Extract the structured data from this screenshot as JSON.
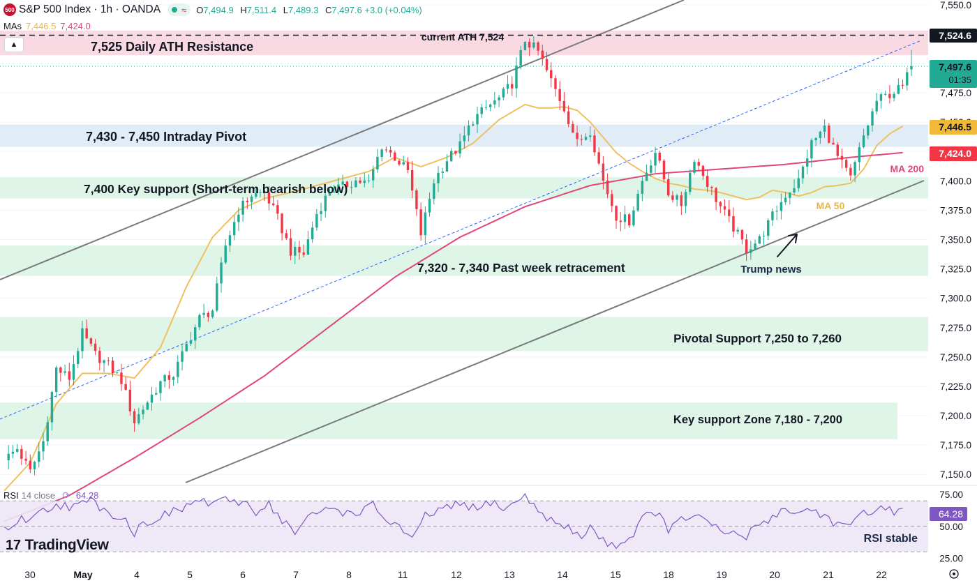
{
  "header": {
    "logo_text": "500",
    "title": "S&P 500 Index · 1h · OANDA",
    "wave_symbol": "≈",
    "ohlc": [
      {
        "k": "O",
        "v": "7,494.9"
      },
      {
        "k": "H",
        "v": "7,511.4"
      },
      {
        "k": "L",
        "v": "7,489.3"
      },
      {
        "k": "C",
        "v": "7,497.6 +3.0 (+0.04%)"
      }
    ],
    "collapse_icon": "▲"
  },
  "mas_legend": {
    "label": "MAs",
    "ma50": "7,446.5",
    "ma200": "7,424.0"
  },
  "rsi_legend": {
    "label": "RSI",
    "params": "14 close",
    "icon": "⟳",
    "value": "64.28"
  },
  "watermark": {
    "mark": "17",
    "text": "TradingView"
  },
  "colors": {
    "up": "#22ab94",
    "down": "#f23645",
    "ma50": "#f0c060",
    "ma200": "#e0457b",
    "rsi": "#7e57c2",
    "channel": "#7a7a7a",
    "midline": "#2962ff",
    "zone_red": "#f8d3de",
    "zone_blue": "#dbeaf6",
    "zone_green": "#d8f3e4",
    "price_tag": "#22ab94"
  },
  "chart_data": [
    {
      "type": "candlestick",
      "title": "S&P 500 Index · 1h · OANDA",
      "x_ticks": [
        "30",
        "May",
        "4",
        "5",
        "6",
        "7",
        "8",
        "11",
        "12",
        "13",
        "14",
        "15",
        "18",
        "19",
        "20",
        "21",
        "22"
      ],
      "y_ticks": [
        "7,550.0",
        "7,525.0",
        "7,500.0",
        "7,475.0",
        "7,450.0",
        "7,425.0",
        "7,400.0",
        "7,375.0",
        "7,350.0",
        "7,325.0",
        "7,300.0",
        "7,275.0",
        "7,250.0",
        "7,225.0",
        "7,200.0",
        "7,175.0",
        "7,150.0"
      ],
      "ylim": [
        7143,
        7554
      ],
      "grid": true,
      "anchors": [
        [
          0,
          7162
        ],
        [
          3,
          7172
        ],
        [
          6,
          7152
        ],
        [
          9,
          7178
        ],
        [
          12,
          7240
        ],
        [
          15,
          7232
        ],
        [
          18,
          7270
        ],
        [
          21,
          7252
        ],
        [
          24,
          7243
        ],
        [
          27,
          7230
        ],
        [
          30,
          7195
        ],
        [
          33,
          7212
        ],
        [
          36,
          7228
        ],
        [
          39,
          7235
        ],
        [
          42,
          7260
        ],
        [
          45,
          7283
        ],
        [
          48,
          7290
        ],
        [
          51,
          7345
        ],
        [
          54,
          7375
        ],
        [
          57,
          7388
        ],
        [
          60,
          7390
        ],
        [
          63,
          7368
        ],
        [
          66,
          7340
        ],
        [
          69,
          7338
        ],
        [
          72,
          7372
        ],
        [
          75,
          7392
        ],
        [
          78,
          7395
        ],
        [
          81,
          7400
        ],
        [
          84,
          7398
        ],
        [
          87,
          7430
        ],
        [
          90,
          7420
        ],
        [
          93,
          7408
        ],
        [
          96,
          7355
        ],
        [
          99,
          7400
        ],
        [
          102,
          7418
        ],
        [
          105,
          7430
        ],
        [
          108,
          7452
        ],
        [
          111,
          7462
        ],
        [
          114,
          7470
        ],
        [
          117,
          7483
        ],
        [
          120,
          7520
        ],
        [
          123,
          7510
        ],
        [
          126,
          7485
        ],
        [
          129,
          7462
        ],
        [
          132,
          7432
        ],
        [
          135,
          7443
        ],
        [
          138,
          7400
        ],
        [
          141,
          7370
        ],
        [
          144,
          7366
        ],
        [
          147,
          7400
        ],
        [
          150,
          7425
        ],
        [
          153,
          7390
        ],
        [
          156,
          7380
        ],
        [
          159,
          7420
        ],
        [
          162,
          7398
        ],
        [
          165,
          7378
        ],
        [
          168,
          7360
        ],
        [
          171,
          7342
        ],
        [
          174,
          7350
        ],
        [
          177,
          7370
        ],
        [
          180,
          7388
        ],
        [
          183,
          7400
        ],
        [
          186,
          7432
        ],
        [
          189,
          7445
        ],
        [
          192,
          7420
        ],
        [
          195,
          7402
        ],
        [
          198,
          7438
        ],
        [
          201,
          7468
        ],
        [
          204,
          7474
        ],
        [
          207,
          7480
        ],
        [
          209,
          7497.6
        ]
      ],
      "ohlc_last": {
        "open": 7494.9,
        "high": 7511.4,
        "low": 7489.3,
        "close": 7497.6,
        "change": 3.0,
        "change_pct": 0.04
      },
      "series": [
        {
          "name": "MA 50",
          "anchors": [
            [
              0,
              7136
            ],
            [
              6,
              7160
            ],
            [
              12,
              7210
            ],
            [
              18,
              7236
            ],
            [
              24,
              7236
            ],
            [
              30,
              7232
            ],
            [
              36,
              7258
            ],
            [
              42,
              7310
            ],
            [
              48,
              7352
            ],
            [
              54,
              7375
            ],
            [
              60,
              7385
            ],
            [
              66,
              7390
            ],
            [
              72,
              7396
            ],
            [
              78,
              7402
            ],
            [
              84,
              7408
            ],
            [
              90,
              7420
            ],
            [
              96,
              7412
            ],
            [
              102,
              7420
            ],
            [
              108,
              7432
            ],
            [
              114,
              7452
            ],
            [
              120,
              7465
            ],
            [
              123,
              7462
            ],
            [
              126,
              7462
            ],
            [
              129,
              7463
            ],
            [
              132,
              7460
            ],
            [
              135,
              7450
            ],
            [
              138,
              7437
            ],
            [
              141,
              7424
            ],
            [
              144,
              7415
            ],
            [
              147,
              7408
            ],
            [
              150,
              7402
            ],
            [
              153,
              7398
            ],
            [
              156,
              7396
            ],
            [
              159,
              7393
            ],
            [
              162,
              7392
            ],
            [
              165,
              7390
            ],
            [
              168,
              7387
            ],
            [
              171,
              7384
            ],
            [
              174,
              7386
            ],
            [
              177,
              7392
            ],
            [
              180,
              7390
            ],
            [
              183,
              7387
            ],
            [
              186,
              7390
            ],
            [
              189,
              7395
            ],
            [
              192,
              7396
            ],
            [
              195,
              7398
            ],
            [
              198,
              7410
            ],
            [
              201,
              7430
            ],
            [
              204,
              7440
            ],
            [
              207,
              7446.5
            ]
          ]
        },
        {
          "name": "MA 200",
          "anchors": [
            [
              0,
              7110
            ],
            [
              15,
              7132
            ],
            [
              30,
              7164
            ],
            [
              45,
              7198
            ],
            [
              60,
              7234
            ],
            [
              75,
              7276
            ],
            [
              90,
              7318
            ],
            [
              105,
              7352
            ],
            [
              120,
              7378
            ],
            [
              135,
              7396
            ],
            [
              150,
              7406
            ],
            [
              165,
              7410
            ],
            [
              180,
              7414
            ],
            [
              195,
              7420
            ],
            [
              207,
              7424
            ]
          ]
        }
      ],
      "zones": [
        {
          "label": "7,525 Daily ATH Resistance",
          "from": 7507,
          "to": 7528
        },
        {
          "label": "7,430 - 7,450 Intraday Pivot",
          "from": 7429,
          "to": 7448
        },
        {
          "label": "7,400 Key support (Short-term bearish below)",
          "from": 7385,
          "to": 7403
        },
        {
          "label": "7,320 - 7,340 Past week retracement",
          "from": 7319,
          "to": 7345
        },
        {
          "label": "Pivotal Support 7,250 to 7,260",
          "from": 7255,
          "to": 7284
        },
        {
          "label": "Key support Zone 7,180 - 7,200",
          "from": 7180,
          "to": 7211
        }
      ],
      "annotations": [
        {
          "text": "current ATH 7,524",
          "value": 7524
        },
        {
          "text": "MA 200"
        },
        {
          "text": "MA 50"
        },
        {
          "text": "Trump news"
        }
      ],
      "price_tags": [
        {
          "value": "7,524.6",
          "kind": "ath"
        },
        {
          "value": "7,497.6",
          "sub": "01:35",
          "kind": "last"
        },
        {
          "value": "7,446.5",
          "kind": "ma50"
        },
        {
          "value": "7,424.0",
          "kind": "ma200"
        }
      ]
    },
    {
      "type": "line",
      "title": "RSI 14 close",
      "y_ticks": [
        "75.00",
        "50.00",
        "25.00"
      ],
      "ylim": [
        22,
        80
      ],
      "bands": [
        70,
        50,
        30
      ],
      "last_value": "64.28",
      "annotation": "RSI stable",
      "series": [
        {
          "name": "RSI",
          "anchors": [
            [
              0,
              48
            ],
            [
              4,
              55
            ],
            [
              8,
              60
            ],
            [
              12,
              68
            ],
            [
              16,
              65
            ],
            [
              20,
              70
            ],
            [
              24,
              62
            ],
            [
              28,
              55
            ],
            [
              30,
              45
            ],
            [
              32,
              52
            ],
            [
              36,
              58
            ],
            [
              40,
              62
            ],
            [
              44,
              70
            ],
            [
              48,
              68
            ],
            [
              50,
              73
            ],
            [
              52,
              66
            ],
            [
              55,
              70
            ],
            [
              58,
              62
            ],
            [
              61,
              68
            ],
            [
              64,
              55
            ],
            [
              67,
              45
            ],
            [
              70,
              56
            ],
            [
              73,
              62
            ],
            [
              76,
              65
            ],
            [
              79,
              60
            ],
            [
              82,
              62
            ],
            [
              85,
              66
            ],
            [
              88,
              55
            ],
            [
              91,
              50
            ],
            [
              94,
              38
            ],
            [
              97,
              58
            ],
            [
              100,
              62
            ],
            [
              103,
              65
            ],
            [
              106,
              68
            ],
            [
              109,
              62
            ],
            [
              112,
              70
            ],
            [
              115,
              64
            ],
            [
              118,
              68
            ],
            [
              120,
              76
            ],
            [
              122,
              65
            ],
            [
              125,
              58
            ],
            [
              127,
              52
            ],
            [
              130,
              48
            ],
            [
              133,
              42
            ],
            [
              135,
              50
            ],
            [
              138,
              38
            ],
            [
              141,
              36
            ],
            [
              144,
              40
            ],
            [
              147,
              56
            ],
            [
              150,
              62
            ],
            [
              153,
              48
            ],
            [
              156,
              54
            ],
            [
              159,
              60
            ],
            [
              162,
              52
            ],
            [
              165,
              46
            ],
            [
              168,
              44
            ],
            [
              171,
              42
            ],
            [
              174,
              52
            ],
            [
              177,
              58
            ],
            [
              180,
              64
            ],
            [
              183,
              60
            ],
            [
              186,
              64
            ],
            [
              189,
              58
            ],
            [
              192,
              52
            ],
            [
              195,
              48
            ],
            [
              198,
              62
            ],
            [
              201,
              64
            ],
            [
              204,
              62
            ],
            [
              207,
              64.28
            ]
          ]
        }
      ]
    }
  ]
}
